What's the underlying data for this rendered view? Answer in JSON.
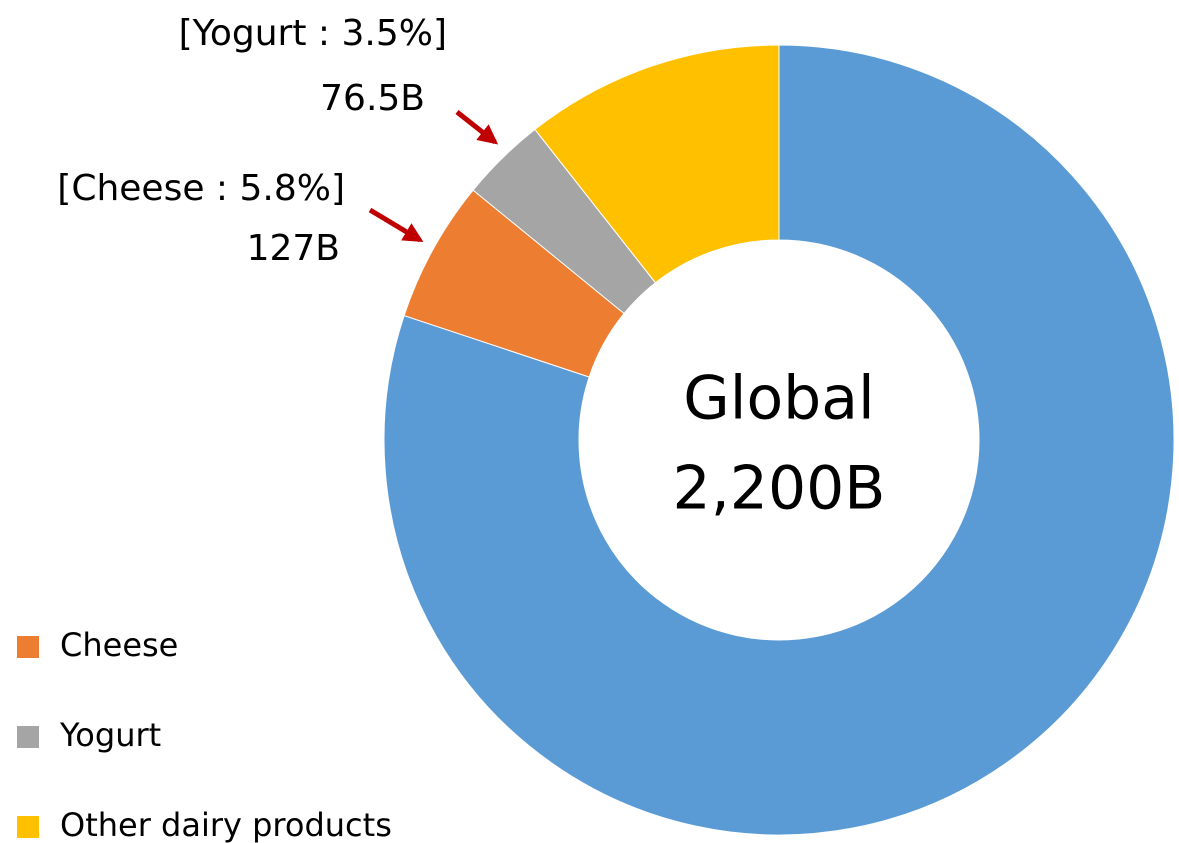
{
  "chart_data": {
    "type": "donut",
    "categories": [
      null,
      "Cheese",
      "Yogurt",
      "Other dairy products"
    ],
    "values": [
      80.1,
      5.8,
      3.5,
      10.6
    ],
    "colors": [
      "#5b9bd5",
      "#ed7d31",
      "#a5a5a5",
      "#ffc000"
    ],
    "annotations": [
      {
        "lines": [
          "[Yogurt : 3.5%]",
          "76.5B"
        ]
      },
      {
        "lines": [
          "[Cheese : 5.8%]",
          "127B"
        ]
      }
    ],
    "center_label": [
      "Global",
      "2,200B"
    ],
    "legend": "bottom-left"
  }
}
